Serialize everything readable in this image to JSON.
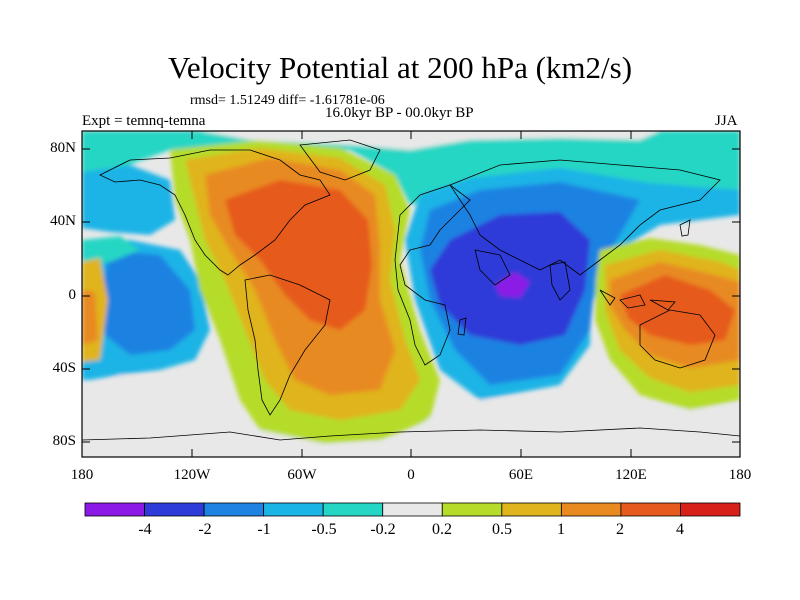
{
  "figure": {
    "title": "Velocity Potential at 200 hPa (km2/s)",
    "stats": "rmsd= 1.51249 diff= -1.61781e-06",
    "period": "16.0kyr BP - 00.0kyr BP",
    "experiment": "Expt = temnq-temna",
    "season": "JJA"
  },
  "axes": {
    "lat_labels": [
      "80N",
      "40N",
      "0",
      "40S",
      "80S"
    ],
    "lon_labels": [
      "180",
      "120W",
      "60W",
      "0",
      "60E",
      "120E",
      "180"
    ]
  },
  "colorbar": {
    "labels": [
      "-4",
      "-2",
      "-1",
      "-0.5",
      "-0.2",
      "0.2",
      "0.5",
      "1",
      "2",
      "4"
    ],
    "colors": [
      "#8b1ae6",
      "#2f3bd8",
      "#1e82e2",
      "#1ab4e6",
      "#26d6c4",
      "#e8e8e8",
      "#b6dc2a",
      "#e0b41c",
      "#e88a20",
      "#e65a1e",
      "#d8201a"
    ]
  },
  "colors": {
    "background_neutral": "#e8e8e8",
    "coastline": "#000000"
  }
}
